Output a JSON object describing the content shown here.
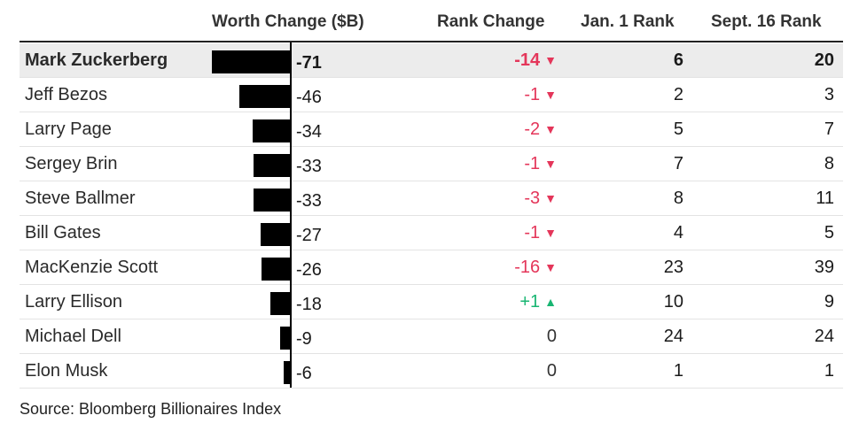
{
  "chart_data": {
    "type": "table",
    "columns": [
      "",
      "Worth Change ($B)",
      "Rank Change",
      "Jan. 1 Rank",
      "Sept. 16 Rank"
    ],
    "rows": [
      {
        "name": "Mark Zuckerberg",
        "worth_change": -71,
        "rank_change": -14,
        "rank_change_label": "-14",
        "jan1_rank": 6,
        "sept16_rank": 20,
        "highlight": true
      },
      {
        "name": "Jeff Bezos",
        "worth_change": -46,
        "rank_change": -1,
        "rank_change_label": "-1",
        "jan1_rank": 2,
        "sept16_rank": 3
      },
      {
        "name": "Larry Page",
        "worth_change": -34,
        "rank_change": -2,
        "rank_change_label": "-2",
        "jan1_rank": 5,
        "sept16_rank": 7
      },
      {
        "name": "Sergey Brin",
        "worth_change": -33,
        "rank_change": -1,
        "rank_change_label": "-1",
        "jan1_rank": 7,
        "sept16_rank": 8
      },
      {
        "name": "Steve Ballmer",
        "worth_change": -33,
        "rank_change": -3,
        "rank_change_label": "-3",
        "jan1_rank": 8,
        "sept16_rank": 11
      },
      {
        "name": "Bill Gates",
        "worth_change": -27,
        "rank_change": -1,
        "rank_change_label": "-1",
        "jan1_rank": 4,
        "sept16_rank": 5
      },
      {
        "name": "MacKenzie Scott",
        "worth_change": -26,
        "rank_change": -16,
        "rank_change_label": "-16",
        "jan1_rank": 23,
        "sept16_rank": 39
      },
      {
        "name": "Larry Ellison",
        "worth_change": -18,
        "rank_change": 1,
        "rank_change_label": "+1",
        "jan1_rank": 10,
        "sept16_rank": 9
      },
      {
        "name": "Michael Dell",
        "worth_change": -9,
        "rank_change": 0,
        "rank_change_label": "0",
        "jan1_rank": 24,
        "sept16_rank": 24
      },
      {
        "name": "Elon Musk",
        "worth_change": -6,
        "rank_change": 0,
        "rank_change_label": "0",
        "jan1_rank": 1,
        "sept16_rank": 1
      }
    ],
    "source": "Source: Bloomberg Billionaires Index",
    "colors": {
      "bar": "#000000",
      "down": "#e4365a",
      "up": "#18b572",
      "highlight_row": "#ececec"
    }
  }
}
